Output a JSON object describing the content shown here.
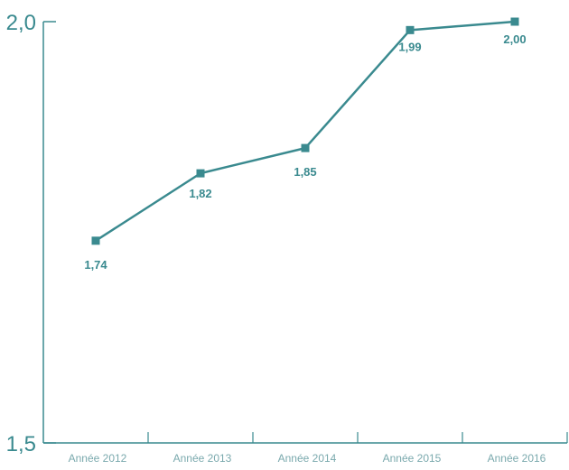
{
  "chart_data": {
    "type": "line",
    "title": "",
    "xlabel": "",
    "ylabel": "",
    "categories": [
      "Année 2012",
      "Année 2013",
      "Année 2014",
      "Année 2015",
      "Année 2016"
    ],
    "series": [
      {
        "values": [
          1.74,
          1.82,
          1.85,
          1.99,
          2.0
        ],
        "value_labels": [
          "1,74",
          "1,82",
          "1,85",
          "1,99",
          "2,00"
        ]
      }
    ],
    "ylim": [
      1.5,
      2.0
    ],
    "yticks": [
      {
        "value": 1.5,
        "label": "1,5"
      },
      {
        "value": 2.0,
        "label": "2,0"
      }
    ],
    "grid": false,
    "legend": "none",
    "colors": {
      "line": "#3a8a8f",
      "marker": "#3a8a8f",
      "axis": "#3a8a8f",
      "ytick_text": "#3a8a8f",
      "xtick_text": "#7aa9ad",
      "data_label": "#3a8a8f"
    }
  }
}
